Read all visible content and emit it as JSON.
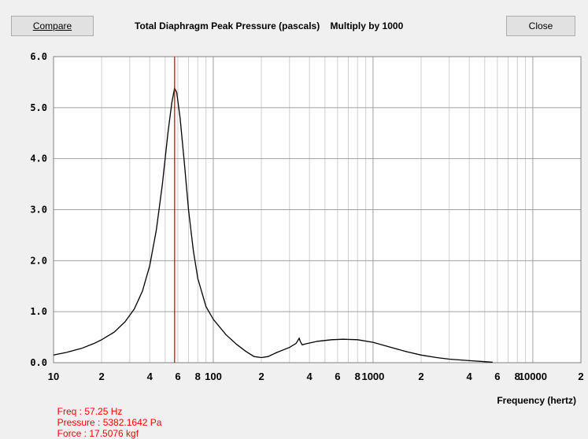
{
  "toolbar": {
    "compare_label": "Compare",
    "close_label": "Close"
  },
  "title": "Total Diaphragm Peak Pressure (pascals)    Multiply by 1000",
  "status": {
    "freq": "Freq : 57.25 Hz",
    "pressure": "Pressure : 5382.1642 Pa",
    "force": "Force : 17.5076 kgf"
  },
  "chart_data": {
    "type": "line",
    "xlabel": "Frequency (hertz)",
    "x_scale": "log",
    "xlim": [
      10,
      20000
    ],
    "ylim": [
      0,
      6
    ],
    "y_ticks": [
      "0.0",
      "1.0",
      "2.0",
      "3.0",
      "4.0",
      "5.0",
      "6.0"
    ],
    "x_ticks": [
      {
        "value": 10,
        "label": "10"
      },
      {
        "value": 20,
        "label": "2"
      },
      {
        "value": 40,
        "label": "4"
      },
      {
        "value": 60,
        "label": "6"
      },
      {
        "value": 80,
        "label": "8"
      },
      {
        "value": 100,
        "label": "100"
      },
      {
        "value": 200,
        "label": "2"
      },
      {
        "value": 400,
        "label": "4"
      },
      {
        "value": 600,
        "label": "6"
      },
      {
        "value": 800,
        "label": "8"
      },
      {
        "value": 1000,
        "label": "1000"
      },
      {
        "value": 2000,
        "label": "2"
      },
      {
        "value": 4000,
        "label": "4"
      },
      {
        "value": 6000,
        "label": "6"
      },
      {
        "value": 8000,
        "label": "8"
      },
      {
        "value": 10000,
        "label": "10000"
      },
      {
        "value": 20000,
        "label": "2"
      }
    ],
    "cursor_x": 57.25,
    "series": [
      {
        "color": "#000000",
        "points": [
          [
            10,
            0.15
          ],
          [
            12,
            0.2
          ],
          [
            15,
            0.28
          ],
          [
            18,
            0.38
          ],
          [
            20,
            0.45
          ],
          [
            24,
            0.6
          ],
          [
            28,
            0.8
          ],
          [
            32,
            1.05
          ],
          [
            36,
            1.4
          ],
          [
            40,
            1.9
          ],
          [
            44,
            2.6
          ],
          [
            48,
            3.5
          ],
          [
            52,
            4.5
          ],
          [
            55,
            5.1
          ],
          [
            57.25,
            5.38
          ],
          [
            59,
            5.3
          ],
          [
            62,
            4.8
          ],
          [
            66,
            3.9
          ],
          [
            70,
            3.0
          ],
          [
            75,
            2.2
          ],
          [
            80,
            1.65
          ],
          [
            90,
            1.1
          ],
          [
            100,
            0.85
          ],
          [
            120,
            0.55
          ],
          [
            140,
            0.36
          ],
          [
            160,
            0.22
          ],
          [
            180,
            0.12
          ],
          [
            200,
            0.1
          ],
          [
            220,
            0.12
          ],
          [
            250,
            0.2
          ],
          [
            300,
            0.3
          ],
          [
            330,
            0.38
          ],
          [
            345,
            0.48
          ],
          [
            350,
            0.42
          ],
          [
            360,
            0.35
          ],
          [
            380,
            0.37
          ],
          [
            450,
            0.42
          ],
          [
            550,
            0.45
          ],
          [
            650,
            0.46
          ],
          [
            800,
            0.45
          ],
          [
            1000,
            0.4
          ],
          [
            1300,
            0.3
          ],
          [
            1600,
            0.22
          ],
          [
            2000,
            0.15
          ],
          [
            2500,
            0.1
          ],
          [
            3000,
            0.07
          ],
          [
            4000,
            0.04
          ],
          [
            5000,
            0.02
          ],
          [
            5600,
            0.01
          ]
        ]
      }
    ]
  },
  "colors": {
    "curve": "#000000",
    "cursor": "#cc0000",
    "grid": "#d0d0d0",
    "grid_decade": "#a0a0a0",
    "status": "#ff0000"
  }
}
